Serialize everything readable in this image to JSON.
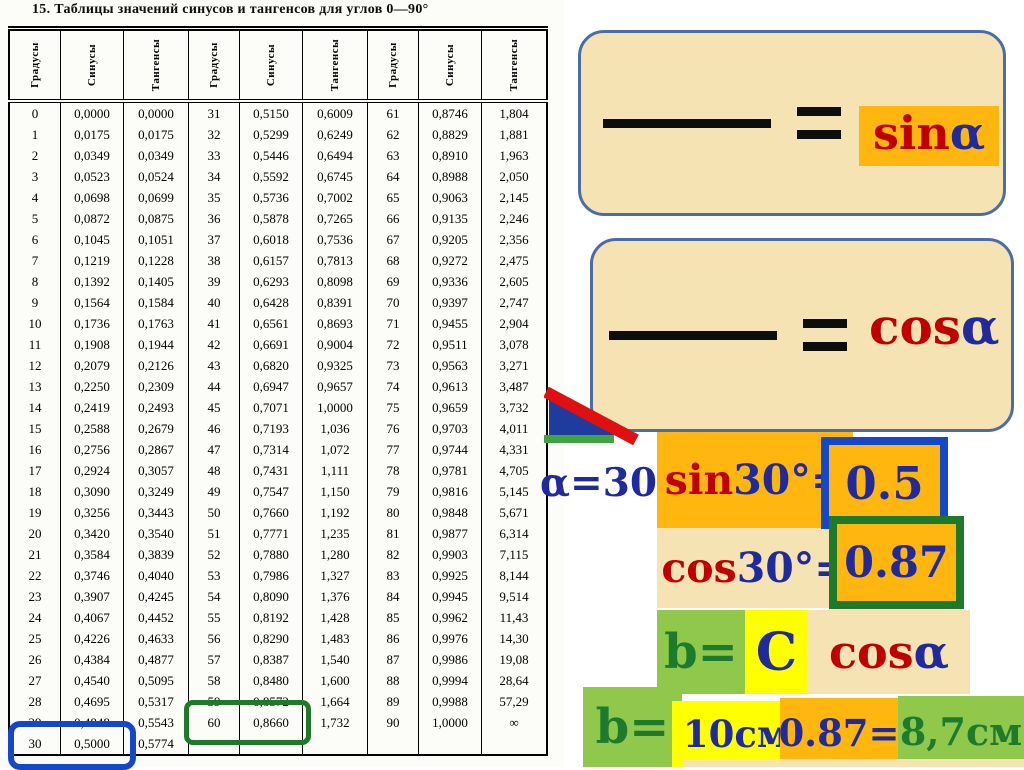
{
  "table": {
    "title": "15. Таблицы значений синусов и тангенсов для углов 0—90°",
    "col_headers": [
      "Градусы",
      "Синусы",
      "Тангенсы"
    ],
    "groups": [
      {
        "rows": [
          [
            "0",
            "0,0000",
            "0,0000"
          ],
          [
            "1",
            "0,0175",
            "0,0175"
          ],
          [
            "2",
            "0,0349",
            "0,0349"
          ],
          [
            "3",
            "0,0523",
            "0,0524"
          ],
          [
            "4",
            "0,0698",
            "0,0699"
          ],
          [
            "5",
            "0,0872",
            "0,0875"
          ],
          [
            "6",
            "0,1045",
            "0,1051"
          ],
          [
            "7",
            "0,1219",
            "0,1228"
          ],
          [
            "8",
            "0,1392",
            "0,1405"
          ],
          [
            "9",
            "0,1564",
            "0,1584"
          ],
          [
            "10",
            "0,1736",
            "0,1763"
          ],
          [
            "11",
            "0,1908",
            "0,1944"
          ],
          [
            "12",
            "0,2079",
            "0,2126"
          ],
          [
            "13",
            "0,2250",
            "0,2309"
          ],
          [
            "14",
            "0,2419",
            "0,2493"
          ],
          [
            "15",
            "0,2588",
            "0,2679"
          ],
          [
            "16",
            "0,2756",
            "0,2867"
          ],
          [
            "17",
            "0,2924",
            "0,3057"
          ],
          [
            "18",
            "0,3090",
            "0,3249"
          ],
          [
            "19",
            "0,3256",
            "0,3443"
          ],
          [
            "20",
            "0,3420",
            "0,3540"
          ],
          [
            "21",
            "0,3584",
            "0,3839"
          ],
          [
            "22",
            "0,3746",
            "0,4040"
          ],
          [
            "23",
            "0,3907",
            "0,4245"
          ],
          [
            "24",
            "0,4067",
            "0,4452"
          ],
          [
            "25",
            "0,4226",
            "0,4633"
          ],
          [
            "26",
            "0,4384",
            "0,4877"
          ],
          [
            "27",
            "0,4540",
            "0,5095"
          ],
          [
            "28",
            "0,4695",
            "0,5317"
          ],
          [
            "29",
            "0,4848",
            "0,5543"
          ],
          [
            "30",
            "0,5000",
            "0,5774"
          ]
        ]
      },
      {
        "rows": [
          [
            "31",
            "0,5150",
            "0,6009"
          ],
          [
            "32",
            "0,5299",
            "0,6249"
          ],
          [
            "33",
            "0,5446",
            "0,6494"
          ],
          [
            "34",
            "0,5592",
            "0,6745"
          ],
          [
            "35",
            "0,5736",
            "0,7002"
          ],
          [
            "36",
            "0,5878",
            "0,7265"
          ],
          [
            "37",
            "0,6018",
            "0,7536"
          ],
          [
            "38",
            "0,6157",
            "0,7813"
          ],
          [
            "39",
            "0,6293",
            "0,8098"
          ],
          [
            "40",
            "0,6428",
            "0,8391"
          ],
          [
            "41",
            "0,6561",
            "0,8693"
          ],
          [
            "42",
            "0,6691",
            "0,9004"
          ],
          [
            "43",
            "0,6820",
            "0,9325"
          ],
          [
            "44",
            "0,6947",
            "0,9657"
          ],
          [
            "45",
            "0,7071",
            "1,0000"
          ],
          [
            "46",
            "0,7193",
            "1,036"
          ],
          [
            "47",
            "0,7314",
            "1,072"
          ],
          [
            "48",
            "0,7431",
            "1,111"
          ],
          [
            "49",
            "0,7547",
            "1,150"
          ],
          [
            "50",
            "0,7660",
            "1,192"
          ],
          [
            "51",
            "0,7771",
            "1,235"
          ],
          [
            "52",
            "0,7880",
            "1,280"
          ],
          [
            "53",
            "0,7986",
            "1,327"
          ],
          [
            "54",
            "0,8090",
            "1,376"
          ],
          [
            "55",
            "0,8192",
            "1,428"
          ],
          [
            "56",
            "0,8290",
            "1,483"
          ],
          [
            "57",
            "0,8387",
            "1,540"
          ],
          [
            "58",
            "0,8480",
            "1,600"
          ],
          [
            "59",
            "0,8572",
            "1,664"
          ],
          [
            "60",
            "0,8660",
            "1,732"
          ]
        ]
      },
      {
        "rows": [
          [
            "61",
            "0,8746",
            "1,804"
          ],
          [
            "62",
            "0,8829",
            "1,881"
          ],
          [
            "63",
            "0,8910",
            "1,963"
          ],
          [
            "64",
            "0,8988",
            "2,050"
          ],
          [
            "65",
            "0,9063",
            "2,145"
          ],
          [
            "66",
            "0,9135",
            "2,246"
          ],
          [
            "67",
            "0,9205",
            "2,356"
          ],
          [
            "68",
            "0,9272",
            "2,475"
          ],
          [
            "69",
            "0,9336",
            "2,605"
          ],
          [
            "70",
            "0,9397",
            "2,747"
          ],
          [
            "71",
            "0,9455",
            "2,904"
          ],
          [
            "72",
            "0,9511",
            "3,078"
          ],
          [
            "73",
            "0,9563",
            "3,271"
          ],
          [
            "74",
            "0,9613",
            "3,487"
          ],
          [
            "75",
            "0,9659",
            "3,732"
          ],
          [
            "76",
            "0,9703",
            "4,011"
          ],
          [
            "77",
            "0,9744",
            "4,331"
          ],
          [
            "78",
            "0,9781",
            "4,705"
          ],
          [
            "79",
            "0,9816",
            "5,145"
          ],
          [
            "80",
            "0,9848",
            "5,671"
          ],
          [
            "81",
            "0,9877",
            "6,314"
          ],
          [
            "82",
            "0,9903",
            "7,115"
          ],
          [
            "83",
            "0,9925",
            "8,144"
          ],
          [
            "84",
            "0,9945",
            "9,514"
          ],
          [
            "85",
            "0,9962",
            "11,43"
          ],
          [
            "86",
            "0,9976",
            "14,30"
          ],
          [
            "87",
            "0,9986",
            "19,08"
          ],
          [
            "88",
            "0,9994",
            "28,64"
          ],
          [
            "89",
            "0,9988",
            "57,29"
          ],
          [
            "90",
            "1,0000",
            "∞"
          ]
        ]
      }
    ]
  },
  "highlights": {
    "blue_box": {
      "row": "30",
      "value": "0,5000"
    },
    "green_box": {
      "row": "60",
      "value": "0,8660"
    }
  },
  "panel": {
    "sin_box": {
      "func": "sin",
      "alpha": "α"
    },
    "cos_box": {
      "func": "cos",
      "alpha": "α"
    },
    "angle_label": {
      "alpha": "α",
      "rest": "=30°"
    },
    "sin_row": {
      "func": "sin",
      "angle": "30°=",
      "result": "0.5"
    },
    "cos_row": {
      "func": "cos",
      "angle": "30°=",
      "result": "0.87"
    },
    "b_formula_row": {
      "b": "b=",
      "c": "C",
      "func": "cos",
      "alpha": "α"
    },
    "b_value_row": {
      "b": "b=",
      "c_value": "10см",
      "cos_value": "0.87=",
      "result": "8,7см"
    }
  },
  "colors": {
    "cream": "#F5E3B4",
    "cream_border": "#4A6DA7",
    "orange": "#FFB70F",
    "red_text": "#C00000",
    "blue_text": "#202A9C",
    "blue_border": "#1448C8",
    "green_border": "#1E7A28",
    "green_text": "#1E7B2E",
    "light_green": "#90C84C",
    "yellow": "#FFFF00",
    "triangle_blue": "#203B9E",
    "triangle_red": "#E01010",
    "triangle_green": "#3DA53D"
  }
}
